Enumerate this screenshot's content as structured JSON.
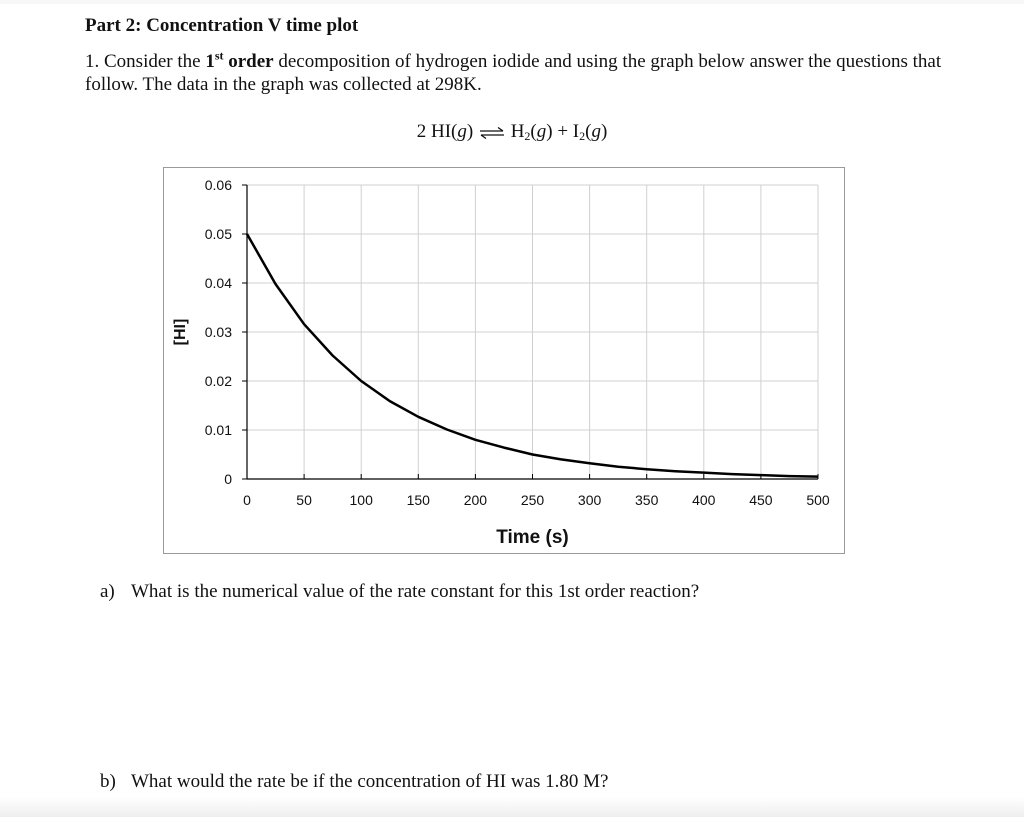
{
  "heading": "Part 2: Concentration V time plot",
  "question": {
    "number": "1.",
    "part1": "Consider the",
    "ordinal_num": "1",
    "ordinal_sup": "st",
    "ordinal_word": "order",
    "part2": "decomposition of hydrogen iodide and using the graph below answer the questions that follow. The data in the graph was collected at 298K."
  },
  "equation": {
    "lhs": "2 HI(",
    "g": "g",
    "close": ")",
    "h2": "H",
    "h2_sub": "2",
    "plus": "+ I",
    "i2_sub": "2"
  },
  "chart_data": {
    "type": "line",
    "xlabel": "Time (s)",
    "ylabel": "[HI]",
    "xlim": [
      0,
      500
    ],
    "ylim": [
      0,
      0.06
    ],
    "x_ticks": [
      "0",
      "50",
      "100",
      "150",
      "200",
      "250",
      "300",
      "350",
      "400",
      "450",
      "500"
    ],
    "y_ticks": [
      "0",
      "0.01",
      "0.02",
      "0.03",
      "0.04",
      "0.05",
      "0.06"
    ],
    "grid": true,
    "color": "#000000",
    "series": [
      {
        "x": [
          0,
          25,
          50,
          75,
          100,
          125,
          150,
          175,
          200,
          225,
          250,
          275,
          300,
          325,
          350,
          375,
          400,
          425,
          450,
          475,
          500
        ],
        "y": [
          0.05,
          0.0398,
          0.0316,
          0.0252,
          0.02,
          0.0159,
          0.0127,
          0.0101,
          0.008,
          0.0064,
          0.005,
          0.004,
          0.0032,
          0.0025,
          0.002,
          0.0016,
          0.0013,
          0.001,
          0.0008,
          0.0006,
          0.0005
        ]
      }
    ]
  },
  "sub_questions": [
    {
      "letter": "a)",
      "text": "What is the numerical value of the rate constant for this 1st order reaction?"
    },
    {
      "letter": "b)",
      "text": "What would the rate be if the concentration of HI was 1.80 M?"
    }
  ]
}
